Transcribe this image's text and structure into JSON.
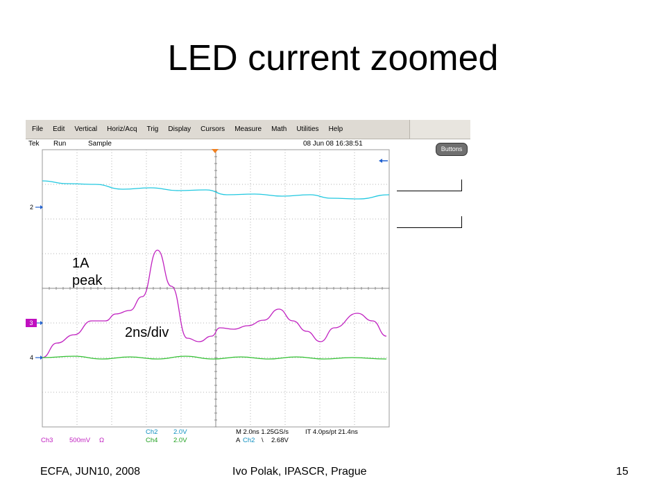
{
  "slide": {
    "title": "LED current  zoomed",
    "annotation_peak_line1": "1A",
    "annotation_peak_line2": "peak",
    "annotation_timebase": "2ns/div"
  },
  "scope": {
    "menu": [
      "File",
      "Edit",
      "Vertical",
      "Horiz/Acq",
      "Trig",
      "Display",
      "Cursors",
      "Measure",
      "Math",
      "Utilities",
      "Help"
    ],
    "status": {
      "brand": "Tek",
      "state": "Run",
      "mode": "Sample",
      "datetime": "08 Jun 08 16:38:51"
    },
    "buttons_label": "Buttons",
    "channel_markers": {
      "ch2": "2",
      "ch3": "3",
      "ch4": "4"
    },
    "readouts": {
      "ch3_name": "Ch3",
      "ch3_scale": "500mV",
      "ch3_coupling": "Ω",
      "ch2_name": "Ch2",
      "ch2_scale": "2.0V",
      "ch4_name": "Ch4",
      "ch4_scale": "2.0V",
      "horiz": "M 2.0ns 1.25GS/s",
      "record": "IT 4.0ps/pt 21.4ns",
      "trigger_source_prefix": "A",
      "trigger_source": "Ch2",
      "trigger_slope": "\\",
      "trigger_level": "2.68V"
    },
    "colors": {
      "ch2": "#20c8e0",
      "ch3": "#c020c0",
      "ch4": "#30c030",
      "trigger": "#f08020"
    }
  },
  "footer": {
    "left": "ECFA, JUN10, 2008",
    "center": "Ivo Polak, IPASCR, Prague",
    "page": "15"
  }
}
